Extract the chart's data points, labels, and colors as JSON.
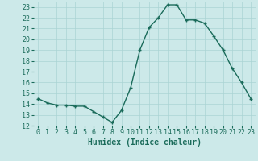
{
  "x": [
    0,
    1,
    2,
    3,
    4,
    5,
    6,
    7,
    8,
    9,
    10,
    11,
    12,
    13,
    14,
    15,
    16,
    17,
    18,
    19,
    20,
    21,
    22,
    23
  ],
  "y": [
    14.5,
    14.1,
    13.9,
    13.9,
    13.8,
    13.8,
    13.3,
    12.8,
    12.3,
    13.4,
    15.5,
    19.0,
    21.1,
    22.0,
    23.2,
    23.2,
    21.8,
    21.8,
    21.5,
    20.3,
    19.0,
    17.3,
    16.0,
    14.5
  ],
  "line_color": "#1a6b5a",
  "marker": "+",
  "marker_size": 3,
  "bg_color": "#cce9e9",
  "grid_color": "#aad4d4",
  "xlabel": "Humidex (Indice chaleur)",
  "ylim": [
    12,
    23.5
  ],
  "xlim": [
    -0.5,
    23.5
  ],
  "yticks": [
    12,
    13,
    14,
    15,
    16,
    17,
    18,
    19,
    20,
    21,
    22,
    23
  ],
  "xticks": [
    0,
    1,
    2,
    3,
    4,
    5,
    6,
    7,
    8,
    9,
    10,
    11,
    12,
    13,
    14,
    15,
    16,
    17,
    18,
    19,
    20,
    21,
    22,
    23
  ],
  "xlabel_fontsize": 7,
  "tick_fontsize": 6,
  "line_width": 1.0
}
